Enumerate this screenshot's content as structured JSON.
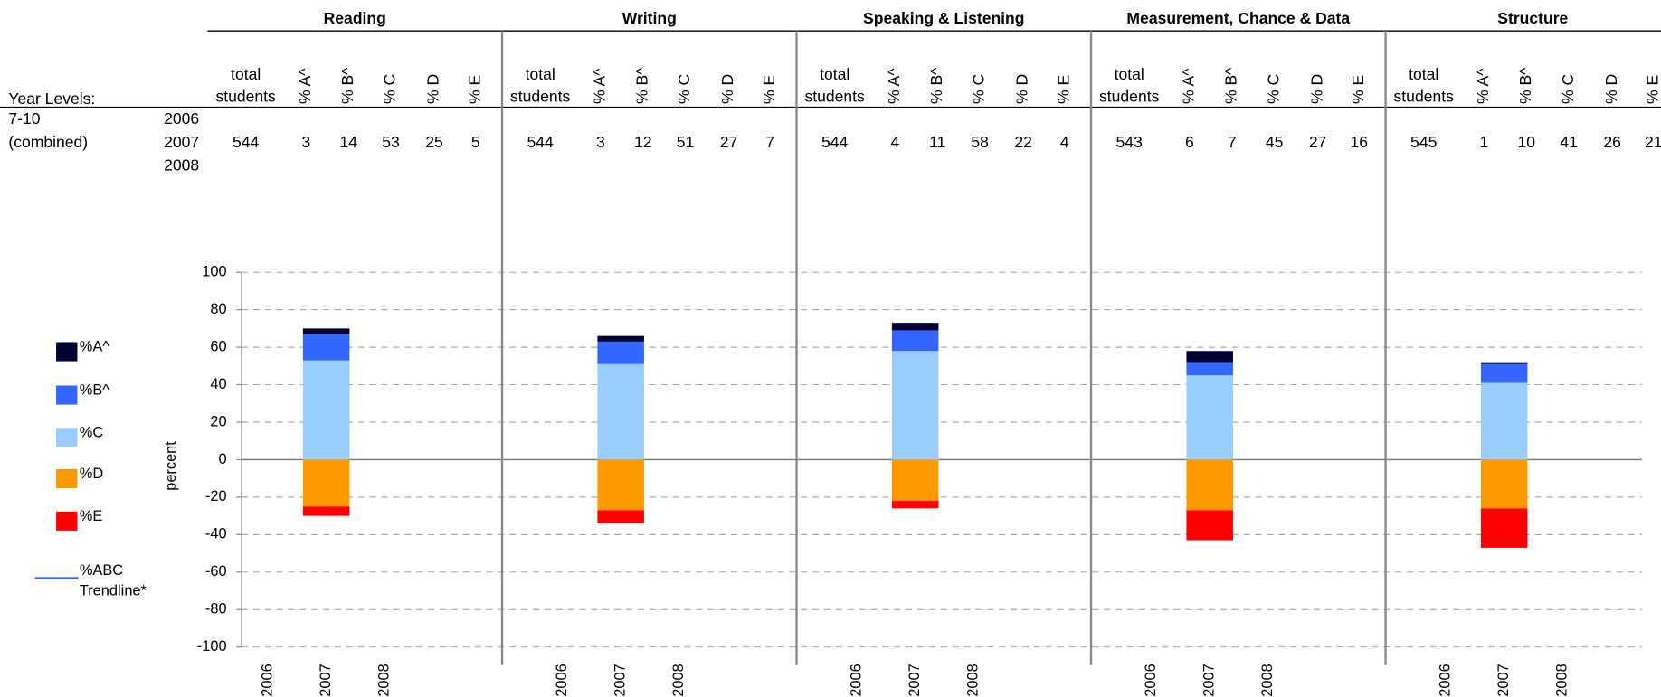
{
  "table": {
    "year_levels_label": "Year Levels:",
    "group": [
      "7-10",
      "(combined)"
    ],
    "years": [
      "2006",
      "2007",
      "2008"
    ],
    "column_headers": [
      [
        "total",
        "students"
      ],
      "% A^",
      "% B^",
      "% C",
      "% D",
      "% E"
    ],
    "rows": [
      {
        "total": 544,
        "percents": [
          3,
          14,
          53,
          25,
          5
        ]
      },
      {
        "total": 544,
        "percents": [
          3,
          12,
          51,
          27,
          7
        ]
      },
      {
        "total": 544,
        "percents": [
          4,
          11,
          58,
          22,
          4
        ]
      },
      {
        "total": 543,
        "percents": [
          6,
          7,
          45,
          27,
          16
        ]
      },
      {
        "total": 545,
        "percents": [
          1,
          10,
          41,
          26,
          21
        ]
      }
    ]
  },
  "chart_data": {
    "type": "bar",
    "stacked": true,
    "ylabel": "percent",
    "ylim": [
      -100,
      100
    ],
    "yticks": [
      -100,
      -80,
      -60,
      -40,
      -20,
      0,
      20,
      40,
      60,
      80,
      100
    ],
    "grid": true,
    "legend": "left",
    "categories": [
      "2006",
      "2007",
      "2008"
    ],
    "series": [
      {
        "name": "%A^",
        "color": "#000033"
      },
      {
        "name": "%B^",
        "color": "#3366ff"
      },
      {
        "name": "%C",
        "color": "#99ccff"
      },
      {
        "name": "%D",
        "color": "#ff9900"
      },
      {
        "name": "%E",
        "color": "#ff0000"
      },
      {
        "name": "%ABC Trendline*",
        "color": "#3366ff",
        "type": "line"
      }
    ],
    "panels": [
      {
        "title": "Reading",
        "values": [
          [
            null,
            3,
            null
          ],
          [
            null,
            14,
            null
          ],
          [
            null,
            53,
            null
          ],
          [
            null,
            -25,
            null
          ],
          [
            null,
            -5,
            null
          ]
        ]
      },
      {
        "title": "Writing",
        "values": [
          [
            null,
            3,
            null
          ],
          [
            null,
            12,
            null
          ],
          [
            null,
            51,
            null
          ],
          [
            null,
            -27,
            null
          ],
          [
            null,
            -7,
            null
          ]
        ]
      },
      {
        "title": "Speaking & Listening",
        "values": [
          [
            null,
            4,
            null
          ],
          [
            null,
            11,
            null
          ],
          [
            null,
            58,
            null
          ],
          [
            null,
            -22,
            null
          ],
          [
            null,
            -4,
            null
          ]
        ]
      },
      {
        "title": "Measurement, Chance & Data",
        "values": [
          [
            null,
            6,
            null
          ],
          [
            null,
            7,
            null
          ],
          [
            null,
            45,
            null
          ],
          [
            null,
            -27,
            null
          ],
          [
            null,
            -16,
            null
          ]
        ]
      },
      {
        "title": "Structure",
        "values": [
          [
            null,
            1,
            null
          ],
          [
            null,
            10,
            null
          ],
          [
            null,
            41,
            null
          ],
          [
            null,
            -26,
            null
          ],
          [
            null,
            -21,
            null
          ]
        ]
      }
    ]
  }
}
